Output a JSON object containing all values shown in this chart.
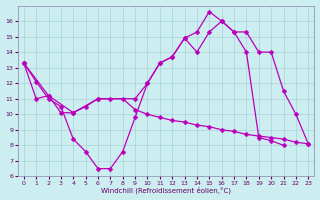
{
  "xlabel": "Windchill (Refroidissement éolien,°C)",
  "bg_color": "#cceef0",
  "grid_color": "#aad4d8",
  "line_color": "#bb00bb",
  "xlim": [
    -0.5,
    23.5
  ],
  "ylim": [
    6,
    17
  ],
  "xticks": [
    0,
    1,
    2,
    3,
    4,
    5,
    6,
    7,
    8,
    9,
    10,
    11,
    12,
    13,
    14,
    15,
    16,
    17,
    18,
    19,
    20,
    21,
    22,
    23
  ],
  "yticks": [
    6,
    7,
    8,
    9,
    10,
    11,
    12,
    13,
    14,
    15,
    16
  ],
  "line1_x": [
    0,
    1,
    2,
    3,
    4,
    5,
    6,
    7,
    8,
    9,
    10,
    11,
    12,
    13,
    14,
    15,
    16,
    17,
    18,
    19,
    20,
    21
  ],
  "line1_y": [
    13.3,
    12.1,
    11.0,
    10.5,
    8.4,
    7.6,
    6.5,
    6.5,
    7.6,
    9.8,
    12.0,
    13.3,
    13.7,
    14.9,
    15.3,
    16.6,
    16.0,
    15.3,
    14.0,
    8.5,
    8.3,
    8.0
  ],
  "line2_x": [
    0,
    1,
    2,
    3,
    4,
    5,
    6,
    7,
    8,
    9,
    10,
    11,
    12,
    13,
    14,
    15,
    16,
    17,
    18,
    19,
    20,
    21,
    22,
    23
  ],
  "line2_y": [
    13.3,
    11.0,
    11.2,
    10.1,
    10.1,
    10.5,
    11.0,
    11.0,
    11.0,
    10.3,
    10.0,
    9.8,
    9.6,
    9.5,
    9.3,
    9.2,
    9.0,
    8.9,
    8.7,
    8.6,
    8.5,
    8.4,
    8.2,
    8.1
  ],
  "line3_x": [
    0,
    2,
    4,
    6,
    9,
    10,
    11,
    12,
    13,
    14,
    15,
    16,
    17,
    18,
    19,
    20,
    21,
    22,
    23
  ],
  "line3_y": [
    13.3,
    11.2,
    10.1,
    11.0,
    11.0,
    12.0,
    13.3,
    13.7,
    14.9,
    14.0,
    15.3,
    16.0,
    15.3,
    15.3,
    14.0,
    14.0,
    11.5,
    10.0,
    8.1
  ]
}
